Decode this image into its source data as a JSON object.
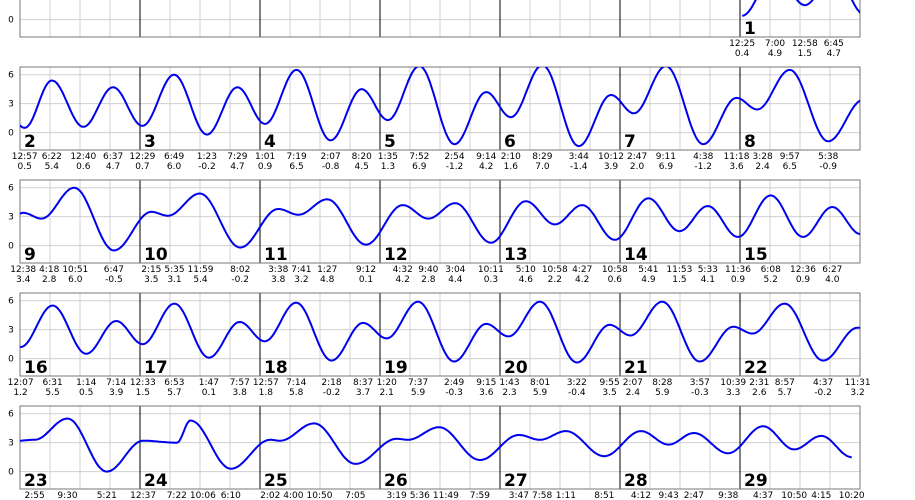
{
  "chart_data": {
    "type": "line",
    "ylim": [
      -1.8,
      6.8
    ],
    "yticks": [
      0,
      3,
      6
    ],
    "grid": true,
    "curve_color": "#0000ee",
    "days": [
      {
        "day": 1,
        "extremes": [
          [
            "12:25",
            0.4
          ],
          [
            "7:00",
            4.9
          ],
          [
            "12:58",
            1.5
          ],
          [
            "6:45",
            4.7
          ]
        ]
      },
      {
        "day": 2,
        "extremes": [
          [
            "12:57",
            0.5
          ],
          [
            "6:22",
            5.4
          ],
          [
            "12:40",
            0.6
          ],
          [
            "6:37",
            4.7
          ]
        ]
      },
      {
        "day": 3,
        "extremes": [
          [
            "12:29",
            0.7
          ],
          [
            "6:49",
            6.0
          ],
          [
            "1:23",
            -0.2
          ],
          [
            "7:29",
            4.7
          ]
        ]
      },
      {
        "day": 4,
        "extremes": [
          [
            "1:01",
            0.9
          ],
          [
            "7:19",
            6.5
          ],
          [
            "2:07",
            -0.8
          ],
          [
            "8:20",
            4.5
          ]
        ]
      },
      {
        "day": 5,
        "extremes": [
          [
            "1:35",
            1.3
          ],
          [
            "7:52",
            6.9
          ],
          [
            "2:54",
            -1.2
          ],
          [
            "9:14",
            4.2
          ]
        ]
      },
      {
        "day": 6,
        "extremes": [
          [
            "2:10",
            1.6
          ],
          [
            "8:29",
            7.0
          ],
          [
            "3:44",
            -1.4
          ],
          [
            "10:12",
            3.9
          ]
        ]
      },
      {
        "day": 7,
        "extremes": [
          [
            "2:47",
            2.0
          ],
          [
            "9:11",
            6.9
          ],
          [
            "4:38",
            -1.2
          ],
          [
            "11:18",
            3.6
          ]
        ]
      },
      {
        "day": 8,
        "extremes": [
          [
            "3:28",
            2.4
          ],
          [
            "9:57",
            6.5
          ],
          [
            "5:38",
            -0.9
          ]
        ]
      },
      {
        "day": 9,
        "extremes": [
          [
            "12:38",
            3.4
          ],
          [
            "4:18",
            2.8
          ],
          [
            "10:51",
            6.0
          ],
          [
            "6:47",
            -0.5
          ]
        ]
      },
      {
        "day": 10,
        "extremes": [
          [
            "2:15",
            3.5
          ],
          [
            "5:35",
            3.1
          ],
          [
            "11:59",
            5.4
          ],
          [
            "8:02",
            -0.2
          ]
        ]
      },
      {
        "day": 11,
        "extremes": [
          [
            "3:38",
            3.8
          ],
          [
            "7:41",
            3.2
          ],
          [
            "1:27",
            4.8
          ],
          [
            "9:12",
            0.1
          ]
        ]
      },
      {
        "day": 12,
        "extremes": [
          [
            "4:32",
            4.2
          ],
          [
            "9:40",
            2.8
          ],
          [
            "3:04",
            4.4
          ],
          [
            "10:11",
            0.3
          ]
        ]
      },
      {
        "day": 13,
        "extremes": [
          [
            "5:10",
            4.6
          ],
          [
            "10:58",
            2.2
          ],
          [
            "4:27",
            4.2
          ],
          [
            "10:58",
            0.6
          ]
        ]
      },
      {
        "day": 14,
        "extremes": [
          [
            "5:41",
            4.9
          ],
          [
            "11:53",
            1.5
          ],
          [
            "5:33",
            4.1
          ],
          [
            "11:36",
            0.9
          ]
        ]
      },
      {
        "day": 15,
        "extremes": [
          [
            "6:08",
            5.2
          ],
          [
            "12:36",
            0.9
          ],
          [
            "6:27",
            4.0
          ]
        ]
      },
      {
        "day": 16,
        "extremes": [
          [
            "12:07",
            1.2
          ],
          [
            "6:31",
            5.5
          ],
          [
            "1:14",
            0.5
          ],
          [
            "7:14",
            3.9
          ]
        ]
      },
      {
        "day": 17,
        "extremes": [
          [
            "12:33",
            1.5
          ],
          [
            "6:53",
            5.7
          ],
          [
            "1:47",
            0.1
          ],
          [
            "7:57",
            3.8
          ]
        ]
      },
      {
        "day": 18,
        "extremes": [
          [
            "12:57",
            1.8
          ],
          [
            "7:14",
            5.8
          ],
          [
            "2:18",
            -0.2
          ],
          [
            "8:37",
            3.7
          ]
        ]
      },
      {
        "day": 19,
        "extremes": [
          [
            "1:20",
            2.1
          ],
          [
            "7:37",
            5.9
          ],
          [
            "2:49",
            -0.3
          ],
          [
            "9:15",
            3.6
          ]
        ]
      },
      {
        "day": 20,
        "extremes": [
          [
            "1:43",
            2.3
          ],
          [
            "8:01",
            5.9
          ],
          [
            "3:22",
            -0.4
          ],
          [
            "9:55",
            3.5
          ]
        ]
      },
      {
        "day": 21,
        "extremes": [
          [
            "2:07",
            2.4
          ],
          [
            "8:28",
            5.9
          ],
          [
            "3:57",
            -0.3
          ],
          [
            "10:39",
            3.3
          ]
        ]
      },
      {
        "day": 22,
        "extremes": [
          [
            "2:31",
            2.6
          ],
          [
            "8:57",
            5.7
          ],
          [
            "4:37",
            -0.2
          ],
          [
            "11:31",
            3.2
          ]
        ]
      },
      {
        "day": 23,
        "extremes": [
          [
            "2:55",
            3.3
          ],
          [
            "9:30",
            5.5
          ],
          [
            "5:21",
            0.0
          ]
        ]
      },
      {
        "day": 24,
        "extremes": [
          [
            "12:37",
            3.2
          ],
          [
            "7:22",
            3.0
          ],
          [
            "10:06",
            5.3
          ],
          [
            "6:10",
            0.3
          ]
        ]
      },
      {
        "day": 25,
        "extremes": [
          [
            "2:02",
            3.3
          ],
          [
            "4:00",
            3.2
          ],
          [
            "10:50",
            5.0
          ],
          [
            "7:05",
            0.8
          ]
        ]
      },
      {
        "day": 26,
        "extremes": [
          [
            "3:19",
            3.4
          ],
          [
            "5:36",
            3.3
          ],
          [
            "11:49",
            4.6
          ],
          [
            "7:59",
            1.2
          ]
        ]
      },
      {
        "day": 27,
        "extremes": [
          [
            "3:47",
            3.8
          ],
          [
            "7:58",
            3.3
          ],
          [
            "1:11",
            4.2
          ],
          [
            "8:51",
            1.6
          ]
        ]
      },
      {
        "day": 28,
        "extremes": [
          [
            "4:12",
            4.2
          ],
          [
            "9:43",
            2.8
          ],
          [
            "2:47",
            4.0
          ],
          [
            "9:38",
            1.9
          ]
        ]
      },
      {
        "day": 29,
        "extremes": [
          [
            "4:37",
            4.7
          ],
          [
            "10:50",
            2.3
          ],
          [
            "4:15",
            3.7
          ],
          [
            "10:20",
            1.5
          ]
        ]
      }
    ]
  }
}
